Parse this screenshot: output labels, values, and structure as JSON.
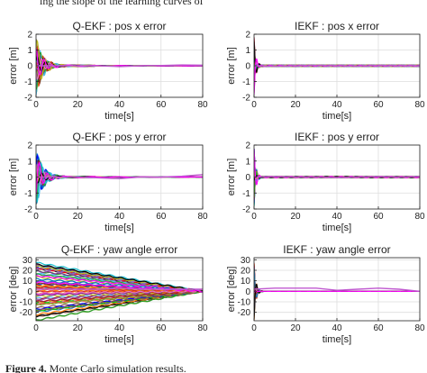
{
  "captions": {
    "top_partial": "ing the slope of the learning curves of",
    "figure_label": "Figure 4.",
    "figure_text": "Monte Carlo simulation results."
  },
  "chart_data": [
    {
      "type": "line",
      "title": "Q-EKF : pos x error",
      "xlabel": "time[s]",
      "ylabel": "error [m]",
      "xlim": [
        0,
        80
      ],
      "ylim": [
        -2,
        2
      ],
      "xticks": [
        0,
        20,
        40,
        60,
        80
      ],
      "yticks": [
        -2,
        -1,
        0,
        1,
        2
      ],
      "grid": true,
      "num_runs": 100,
      "envelope": {
        "kind": "decaying-oscillation",
        "initial_amplitude": 1.9
      },
      "mean_trend": {
        "x": [
          0,
          10,
          20,
          30,
          40,
          50,
          60,
          70,
          80
        ],
        "y": [
          0,
          0,
          0,
          0,
          -0.05,
          0,
          0.02,
          0.05,
          0.04
        ]
      }
    },
    {
      "type": "line",
      "title": "IEKF : pos x error",
      "xlabel": "time[s]",
      "ylabel": "error [m]",
      "xlim": [
        0,
        80
      ],
      "ylim": [
        -2,
        2
      ],
      "xticks": [
        0,
        20,
        40,
        60,
        80
      ],
      "yticks": [
        -2,
        -1,
        0,
        1,
        2
      ],
      "grid": true,
      "num_runs": 100,
      "envelope": {
        "kind": "fast-convergence",
        "initial_amplitude": 1.9
      },
      "mean_trend": {
        "x": [
          0,
          10,
          20,
          30,
          40,
          50,
          60,
          70,
          80
        ],
        "y": [
          0,
          -0.02,
          0,
          0.01,
          0,
          -0.01,
          0.01,
          0,
          0
        ]
      }
    },
    {
      "type": "line",
      "title": "Q-EKF : pos y error",
      "xlabel": "time[s]",
      "ylabel": "error [m]",
      "xlim": [
        0,
        80
      ],
      "ylim": [
        -2,
        2
      ],
      "xticks": [
        0,
        20,
        40,
        60,
        80
      ],
      "yticks": [
        -2,
        -1,
        0,
        1,
        2
      ],
      "grid": true,
      "num_runs": 100,
      "envelope": {
        "kind": "decaying-oscillation",
        "initial_amplitude": 1.9
      },
      "mean_trend": {
        "x": [
          0,
          10,
          20,
          30,
          40,
          50,
          60,
          70,
          80
        ],
        "y": [
          0,
          0,
          0,
          -0.05,
          -0.1,
          0,
          0,
          0.05,
          0.15
        ]
      }
    },
    {
      "type": "line",
      "title": "IEKF : pos y error",
      "xlabel": "time[s]",
      "ylabel": "error [m]",
      "xlim": [
        0,
        80
      ],
      "ylim": [
        -2,
        2
      ],
      "xticks": [
        0,
        20,
        40,
        60,
        80
      ],
      "yticks": [
        -2,
        -1,
        0,
        1,
        2
      ],
      "grid": true,
      "num_runs": 100,
      "envelope": {
        "kind": "fast-convergence",
        "initial_amplitude": 1.9
      },
      "mean_trend": {
        "x": [
          0,
          10,
          20,
          30,
          40,
          50,
          60,
          70,
          80
        ],
        "y": [
          0,
          0.02,
          0,
          0,
          -0.02,
          0,
          0.02,
          0,
          0.02
        ]
      }
    },
    {
      "type": "line",
      "title": "Q-EKF : yaw angle error",
      "xlabel": "time[s]",
      "ylabel": "error [deg]",
      "xlim": [
        0,
        80
      ],
      "ylim": [
        -28,
        32
      ],
      "xticks": [
        0,
        20,
        40,
        60,
        80
      ],
      "yticks": [
        -20,
        -10,
        0,
        10,
        20,
        30
      ],
      "grid": true,
      "num_runs": 100,
      "envelope": {
        "kind": "slow-linear-convergence",
        "initial_amplitude": 28
      },
      "mean_trend": {
        "x": [
          0,
          10,
          20,
          30,
          40,
          50,
          60,
          70,
          80
        ],
        "y": [
          2,
          2,
          2,
          2,
          3,
          2,
          2,
          2,
          2
        ]
      }
    },
    {
      "type": "line",
      "title": "IEKF : yaw angle error",
      "xlabel": "time[s]",
      "ylabel": "error [deg]",
      "xlim": [
        0,
        80
      ],
      "ylim": [
        -28,
        32
      ],
      "xticks": [
        0,
        20,
        40,
        60,
        80
      ],
      "yticks": [
        -20,
        -10,
        0,
        10,
        20,
        30
      ],
      "grid": true,
      "num_runs": 100,
      "envelope": {
        "kind": "fast-convergence",
        "initial_amplitude": 28
      },
      "mean_trend": {
        "x": [
          0,
          10,
          20,
          30,
          40,
          50,
          60,
          70,
          80
        ],
        "y": [
          2,
          3,
          3,
          3,
          1,
          2,
          3,
          2,
          0
        ]
      }
    }
  ],
  "colors": [
    "#0072bd",
    "#d95319",
    "#edb120",
    "#7e2f8e",
    "#77ac30",
    "#4dbeee",
    "#a2142f",
    "#1f77b4",
    "#ff7f0e",
    "#2ca02c",
    "#d62728",
    "#9467bd",
    "#8c564b",
    "#e377c2",
    "#17becf",
    "#bcbd22",
    "#000000",
    "#ff00ff",
    "#00cc00",
    "#0000ff",
    "#ff0000"
  ],
  "grid_color": "#dddddd",
  "mean_color": "#c05ad0"
}
